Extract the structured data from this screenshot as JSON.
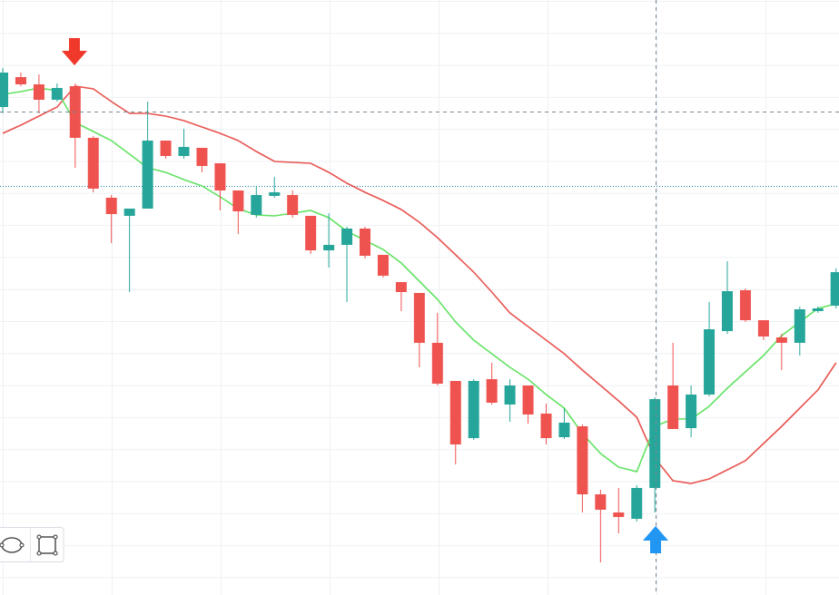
{
  "chart_data": {
    "type": "candlestick",
    "ylim": [
      0,
      656
    ],
    "up_color": "#26a69a",
    "down_color": "#ef5350",
    "grid": true,
    "open": [
      538,
      571,
      563,
      546,
      561,
      504,
      438,
      418,
      426,
      501,
      484,
      493,
      476,
      446,
      419,
      440,
      441,
      418,
      380,
      386,
      404,
      375,
      345,
      333,
      278,
      236,
      173,
      238,
      210,
      231,
      200,
      174,
      186,
      111,
      91,
      84,
      118,
      231,
      184,
      221,
      291,
      336,
      303,
      284,
      278,
      313,
      319
    ],
    "high": [
      581,
      576,
      574,
      564,
      564,
      506,
      441,
      426,
      544,
      501,
      514,
      493,
      476,
      446,
      451,
      461,
      446,
      418,
      421,
      406,
      406,
      375,
      345,
      333,
      311,
      236,
      238,
      256,
      238,
      231,
      211,
      206,
      188,
      116,
      118,
      121,
      218,
      278,
      231,
      323,
      368,
      338,
      303,
      288,
      318,
      318,
      360
    ],
    "low": [
      531,
      561,
      531,
      544,
      471,
      444,
      388,
      334,
      426,
      481,
      481,
      466,
      424,
      398,
      416,
      438,
      416,
      376,
      361,
      323,
      371,
      350,
      313,
      251,
      231,
      144,
      171,
      210,
      191,
      189,
      166,
      172,
      91,
      36,
      68,
      81,
      91,
      183,
      174,
      219,
      288,
      301,
      281,
      248,
      264,
      311,
      316
    ],
    "close": [
      576,
      563,
      546,
      559,
      504,
      448,
      420,
      426,
      501,
      484,
      494,
      473,
      446,
      423,
      441,
      444,
      419,
      380,
      386,
      404,
      374,
      352,
      334,
      278,
      233,
      166,
      236,
      212,
      231,
      199,
      173,
      190,
      111,
      94,
      86,
      118,
      216,
      183,
      221,
      293,
      335,
      303,
      285,
      278,
      315,
      316,
      356
    ],
    "lines": [
      {
        "color": "#e8534f",
        "values": [
          509,
          518,
          528,
          538,
          561,
          558,
          544,
          531,
          531,
          528,
          523,
          516,
          509,
          501,
          489,
          478,
          477,
          476,
          466,
          454,
          444,
          435,
          425,
          411,
          394,
          375,
          356,
          334,
          311,
          296,
          281,
          266,
          248,
          231,
          214,
          196,
          151,
          126,
          123,
          128,
          138,
          148,
          167,
          186,
          206,
          226,
          256
        ]
      },
      {
        "color": "#62e262",
        "values": [
          552,
          555,
          559,
          556,
          521,
          511,
          501,
          486,
          471,
          466,
          458,
          451,
          439,
          426,
          419,
          418,
          421,
          424,
          416,
          401,
          391,
          381,
          366,
          346,
          326,
          301,
          281,
          266,
          251,
          238,
          221,
          206,
          178,
          156,
          141,
          136,
          186,
          194,
          194,
          208,
          228,
          246,
          264,
          286,
          301,
          316,
          321
        ]
      }
    ],
    "price_line": {
      "value": 451,
      "color": "#1a7fa0"
    }
  }
}
